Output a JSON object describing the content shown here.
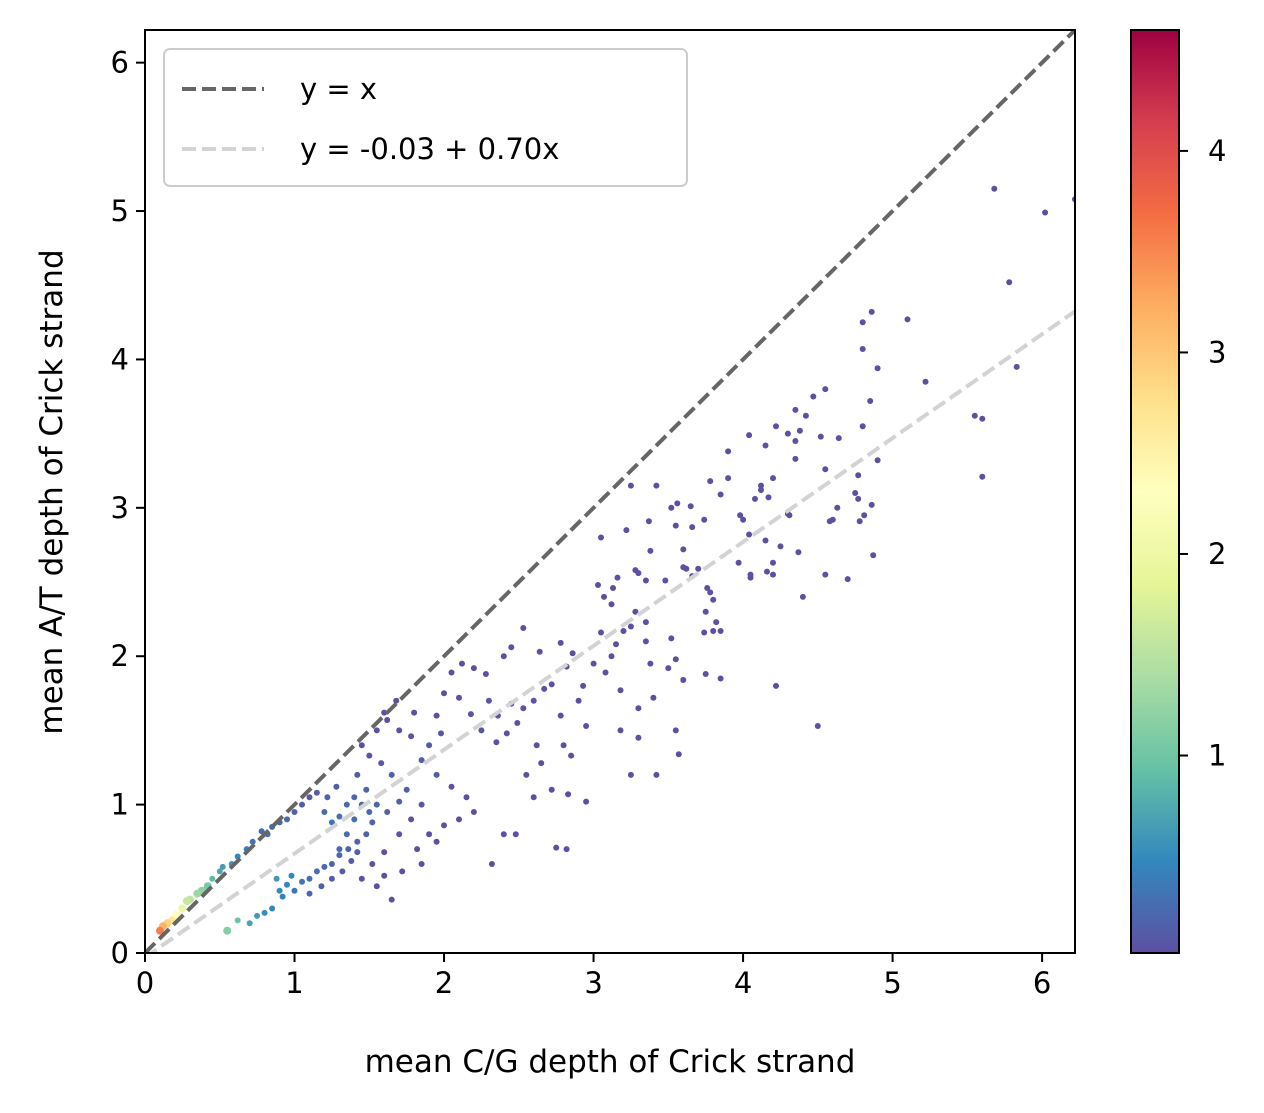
{
  "chart_data": {
    "type": "scatter",
    "xlabel": "mean C/G depth of Crick strand",
    "ylabel": "mean A/T depth of Crick strand",
    "xlim": [
      0,
      6.22
    ],
    "ylim": [
      0,
      6.22
    ],
    "xticks": [
      "0",
      "1",
      "2",
      "3",
      "4",
      "5",
      "6"
    ],
    "yticks": [
      "0",
      "1",
      "2",
      "3",
      "4",
      "5",
      "6"
    ],
    "grid": false,
    "legend": {
      "placement": "top-left",
      "entries": [
        {
          "label": "y = x",
          "color": "#666666",
          "style": "dashed"
        },
        {
          "label": "y = -0.03 + 0.70x",
          "color": "#d3d3d3",
          "style": "dashed"
        }
      ]
    },
    "reference_lines": [
      {
        "intercept": 0,
        "slope": 1,
        "color": "#666666"
      },
      {
        "intercept": -0.03,
        "slope": 0.7,
        "color": "#d3d3d3"
      }
    ],
    "colorbar": {
      "colormap": "Spectral_r",
      "range": [
        0.02,
        4.6
      ],
      "ticks": [
        "1",
        "2",
        "3",
        "4"
      ],
      "tick_values": [
        1,
        2,
        3,
        4
      ]
    },
    "points": [
      [
        5.68,
        5.15
      ],
      [
        6.02,
        4.99
      ],
      [
        6.22,
        5.08
      ],
      [
        5.78,
        4.52
      ],
      [
        5.1,
        4.27
      ],
      [
        4.86,
        4.32
      ],
      [
        4.8,
        4.25
      ],
      [
        4.8,
        4.07
      ],
      [
        5.22,
        3.85
      ],
      [
        5.83,
        3.95
      ],
      [
        5.55,
        3.62
      ],
      [
        5.6,
        3.6
      ],
      [
        5.6,
        3.21
      ],
      [
        4.55,
        3.8
      ],
      [
        4.9,
        3.94
      ],
      [
        4.42,
        3.62
      ],
      [
        4.38,
        3.52
      ],
      [
        4.47,
        3.75
      ],
      [
        4.52,
        3.48
      ],
      [
        4.85,
        3.72
      ],
      [
        4.8,
        3.55
      ],
      [
        4.64,
        3.47
      ],
      [
        4.3,
        3.5
      ],
      [
        4.22,
        3.55
      ],
      [
        4.15,
        3.42
      ],
      [
        4.04,
        3.49
      ],
      [
        4.35,
        3.66
      ],
      [
        4.35,
        3.45
      ],
      [
        4.35,
        3.33
      ],
      [
        4.55,
        3.26
      ],
      [
        4.77,
        3.22
      ],
      [
        4.75,
        3.1
      ],
      [
        4.77,
        3.06
      ],
      [
        4.9,
        3.32
      ],
      [
        4.86,
        3.02
      ],
      [
        4.81,
        2.95
      ],
      [
        4.78,
        2.91
      ],
      [
        4.63,
        3.0
      ],
      [
        4.6,
        2.92
      ],
      [
        4.58,
        2.91
      ],
      [
        3.9,
        3.38
      ],
      [
        3.9,
        3.2
      ],
      [
        3.78,
        3.18
      ],
      [
        3.65,
        3.01
      ],
      [
        3.85,
        3.09
      ],
      [
        4.17,
        3.07
      ],
      [
        4.2,
        3.2
      ],
      [
        4.12,
        3.12
      ],
      [
        4.12,
        3.15
      ],
      [
        4.08,
        3.06
      ],
      [
        4.0,
        2.92
      ],
      [
        4.04,
        2.82
      ],
      [
        4.15,
        2.78
      ],
      [
        4.25,
        2.74
      ],
      [
        4.3,
        2.96
      ],
      [
        4.31,
        2.95
      ],
      [
        3.98,
        2.95
      ],
      [
        3.97,
        2.63
      ],
      [
        4.05,
        2.53
      ],
      [
        4.05,
        2.55
      ],
      [
        4.16,
        2.57
      ],
      [
        4.2,
        2.63
      ],
      [
        4.37,
        2.7
      ],
      [
        4.2,
        2.55
      ],
      [
        4.4,
        2.4
      ],
      [
        4.55,
        2.55
      ],
      [
        4.7,
        2.52
      ],
      [
        4.87,
        2.68
      ],
      [
        3.42,
        3.15
      ],
      [
        3.56,
        3.03
      ],
      [
        3.52,
        3.0
      ],
      [
        3.74,
        2.92
      ],
      [
        3.66,
        2.87
      ],
      [
        3.55,
        2.88
      ],
      [
        3.37,
        2.91
      ],
      [
        3.25,
        3.15
      ],
      [
        3.22,
        2.85
      ],
      [
        3.05,
        2.8
      ],
      [
        3.38,
        2.71
      ],
      [
        3.6,
        2.72
      ],
      [
        3.6,
        2.6
      ],
      [
        3.7,
        2.59
      ],
      [
        3.76,
        2.46
      ],
      [
        3.78,
        2.43
      ],
      [
        3.8,
        2.38
      ],
      [
        3.75,
        2.3
      ],
      [
        3.82,
        2.23
      ],
      [
        3.74,
        2.16
      ],
      [
        3.8,
        2.17
      ],
      [
        3.85,
        2.17
      ],
      [
        3.66,
        2.54
      ],
      [
        3.62,
        2.59
      ],
      [
        3.48,
        2.51
      ],
      [
        3.35,
        2.51
      ],
      [
        3.28,
        2.58
      ],
      [
        3.3,
        2.56
      ],
      [
        3.16,
        2.53
      ],
      [
        3.07,
        2.4
      ],
      [
        3.03,
        2.48
      ],
      [
        3.13,
        2.46
      ],
      [
        3.12,
        2.35
      ],
      [
        3.28,
        2.3
      ],
      [
        3.35,
        2.23
      ],
      [
        3.52,
        2.12
      ],
      [
        3.55,
        1.98
      ],
      [
        3.6,
        1.84
      ],
      [
        3.5,
        1.92
      ],
      [
        3.38,
        1.95
      ],
      [
        3.35,
        2.1
      ],
      [
        3.25,
        2.2
      ],
      [
        3.15,
        2.08
      ],
      [
        3.2,
        2.17
      ],
      [
        3.05,
        2.16
      ],
      [
        3.12,
        2.0
      ],
      [
        3.08,
        1.89
      ],
      [
        3.18,
        1.77
      ],
      [
        3.4,
        1.72
      ],
      [
        3.55,
        1.5
      ],
      [
        3.57,
        1.34
      ],
      [
        3.42,
        1.2
      ],
      [
        3.25,
        1.2
      ],
      [
        3.3,
        1.45
      ],
      [
        3.18,
        1.5
      ],
      [
        3.3,
        1.65
      ],
      [
        3.85,
        1.85
      ],
      [
        4.22,
        1.8
      ],
      [
        4.5,
        1.53
      ],
      [
        3.75,
        1.88
      ],
      [
        3.0,
        1.95
      ],
      [
        2.93,
        1.8
      ],
      [
        2.9,
        1.7
      ],
      [
        2.95,
        1.53
      ],
      [
        2.85,
        1.33
      ],
      [
        2.8,
        1.4
      ],
      [
        2.65,
        1.28
      ],
      [
        2.95,
        1.02
      ],
      [
        2.83,
        1.07
      ],
      [
        2.72,
        1.1
      ],
      [
        2.6,
        1.05
      ],
      [
        2.4,
        0.8
      ],
      [
        2.75,
        0.71
      ],
      [
        2.82,
        0.7
      ],
      [
        2.32,
        0.6
      ],
      [
        2.48,
        0.8
      ],
      [
        2.55,
        1.2
      ],
      [
        2.62,
        1.4
      ],
      [
        2.78,
        1.6
      ],
      [
        2.72,
        1.81
      ],
      [
        2.82,
        1.93
      ],
      [
        2.86,
        2.02
      ],
      [
        2.78,
        2.09
      ],
      [
        2.64,
        2.03
      ],
      [
        2.53,
        2.19
      ],
      [
        2.45,
        2.06
      ],
      [
        2.4,
        2.0
      ],
      [
        2.28,
        1.88
      ],
      [
        2.2,
        1.92
      ],
      [
        2.12,
        1.95
      ],
      [
        2.05,
        1.89
      ],
      [
        2.1,
        1.72
      ],
      [
        2.18,
        1.61
      ],
      [
        2.25,
        1.5
      ],
      [
        2.35,
        1.42
      ],
      [
        2.42,
        1.48
      ],
      [
        2.49,
        1.55
      ],
      [
        2.53,
        1.65
      ],
      [
        2.6,
        1.7
      ],
      [
        2.67,
        1.78
      ],
      [
        2.45,
        1.68
      ],
      [
        2.36,
        1.6
      ],
      [
        2.3,
        1.7
      ],
      [
        2.0,
        1.75
      ],
      [
        1.95,
        1.6
      ],
      [
        1.98,
        1.48
      ],
      [
        1.9,
        1.4
      ],
      [
        1.85,
        1.3
      ],
      [
        1.95,
        1.2
      ],
      [
        2.05,
        1.12
      ],
      [
        2.15,
        1.05
      ],
      [
        2.2,
        0.95
      ],
      [
        2.1,
        0.9
      ],
      [
        2.0,
        0.86
      ],
      [
        1.9,
        0.8
      ],
      [
        1.95,
        0.75
      ],
      [
        1.82,
        0.7
      ],
      [
        1.85,
        0.6
      ],
      [
        1.72,
        0.55
      ],
      [
        1.6,
        0.52
      ],
      [
        1.55,
        0.45
      ],
      [
        1.45,
        0.5
      ],
      [
        1.65,
        0.36
      ],
      [
        1.52,
        0.6
      ],
      [
        1.6,
        0.68
      ],
      [
        1.7,
        0.8
      ],
      [
        1.78,
        0.9
      ],
      [
        1.85,
        1.0
      ],
      [
        1.75,
        1.1
      ],
      [
        1.65,
        1.2
      ],
      [
        1.58,
        1.28
      ],
      [
        1.5,
        1.33
      ],
      [
        1.45,
        1.4
      ],
      [
        1.55,
        1.5
      ],
      [
        1.62,
        1.57
      ],
      [
        1.7,
        1.5
      ],
      [
        1.78,
        1.46
      ],
      [
        1.8,
        1.62
      ],
      [
        1.68,
        1.7
      ],
      [
        1.6,
        1.62
      ],
      [
        1.42,
        1.2
      ],
      [
        1.48,
        1.1
      ],
      [
        1.55,
        1.0
      ],
      [
        1.62,
        0.95
      ],
      [
        1.7,
        1.02
      ],
      [
        1.4,
        0.9
      ],
      [
        1.35,
        0.8
      ],
      [
        1.3,
        0.7
      ],
      [
        1.38,
        0.62
      ],
      [
        1.42,
        0.68
      ],
      [
        1.32,
        0.55
      ],
      [
        1.25,
        0.5
      ],
      [
        1.18,
        0.45
      ],
      [
        1.1,
        0.4
      ],
      [
        1.0,
        0.42
      ],
      [
        0.92,
        0.38
      ],
      [
        0.85,
        0.3
      ],
      [
        0.8,
        0.27
      ],
      [
        0.75,
        0.25
      ],
      [
        0.7,
        0.2
      ],
      [
        0.62,
        0.22
      ],
      [
        0.55,
        0.15
      ],
      [
        1.28,
        1.12
      ],
      [
        1.22,
        1.05
      ],
      [
        1.15,
        1.08
      ],
      [
        1.1,
        1.05
      ],
      [
        1.05,
        1.0
      ],
      [
        1.0,
        0.95
      ],
      [
        0.95,
        0.9
      ],
      [
        0.9,
        0.88
      ],
      [
        0.85,
        0.85
      ],
      [
        0.82,
        0.8
      ],
      [
        0.78,
        0.82
      ],
      [
        0.72,
        0.75
      ],
      [
        0.68,
        0.7
      ],
      [
        0.62,
        0.65
      ],
      [
        0.58,
        0.6
      ],
      [
        0.52,
        0.58
      ],
      [
        0.5,
        0.55
      ],
      [
        0.45,
        0.5
      ],
      [
        0.42,
        0.45
      ],
      [
        0.38,
        0.42
      ],
      [
        0.35,
        0.4
      ],
      [
        0.3,
        0.36
      ],
      [
        0.28,
        0.35
      ],
      [
        0.25,
        0.3
      ],
      [
        0.21,
        0.26
      ],
      [
        0.18,
        0.22
      ],
      [
        0.15,
        0.2
      ],
      [
        0.12,
        0.18
      ],
      [
        0.1,
        0.15
      ],
      [
        1.2,
        0.95
      ],
      [
        1.25,
        0.88
      ],
      [
        1.3,
        0.92
      ],
      [
        1.35,
        1.0
      ],
      [
        1.4,
        1.05
      ],
      [
        1.45,
        1.0
      ],
      [
        1.5,
        0.95
      ],
      [
        1.52,
        0.88
      ],
      [
        1.48,
        0.8
      ],
      [
        1.42,
        0.75
      ],
      [
        1.36,
        0.7
      ],
      [
        1.3,
        0.66
      ],
      [
        1.25,
        0.6
      ],
      [
        1.2,
        0.58
      ],
      [
        1.15,
        0.55
      ],
      [
        1.1,
        0.5
      ],
      [
        1.05,
        0.48
      ],
      [
        0.98,
        0.52
      ],
      [
        0.95,
        0.46
      ],
      [
        0.9,
        0.42
      ],
      [
        0.88,
        0.5
      ]
    ]
  }
}
